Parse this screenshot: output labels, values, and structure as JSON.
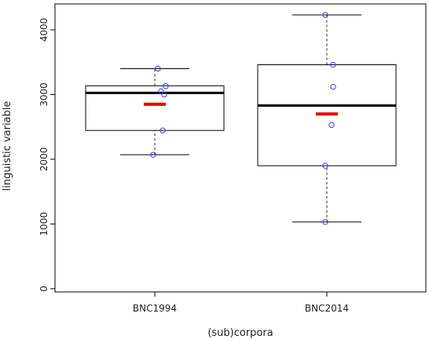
{
  "chart_data": {
    "type": "boxplot",
    "xlabel": "(sub)corpora",
    "ylabel": "linguistic variable",
    "ylim": [
      -50,
      4400
    ],
    "yticks": [
      0,
      1000,
      2000,
      3000,
      4000
    ],
    "grid": false,
    "categories": [
      "BNC1994",
      "BNC2014"
    ],
    "boxes": [
      {
        "category": "BNC1994",
        "whisker_low": 2070,
        "q1": 2445,
        "median": 3025,
        "q3": 3135,
        "whisker_high": 3400,
        "mean": 2850,
        "points": [
          2070,
          2445,
          3000,
          3050,
          3130,
          3400
        ]
      },
      {
        "category": "BNC2014",
        "whisker_low": 1030,
        "q1": 1900,
        "median": 2830,
        "q3": 3460,
        "whisker_high": 4230,
        "mean": 2700,
        "points": [
          1030,
          1900,
          2530,
          3120,
          3460,
          4230
        ]
      }
    ],
    "colors": {
      "box": "#000000",
      "whisker": "#555555",
      "points": "#3b3bd6",
      "mean": "#ee0000"
    }
  }
}
